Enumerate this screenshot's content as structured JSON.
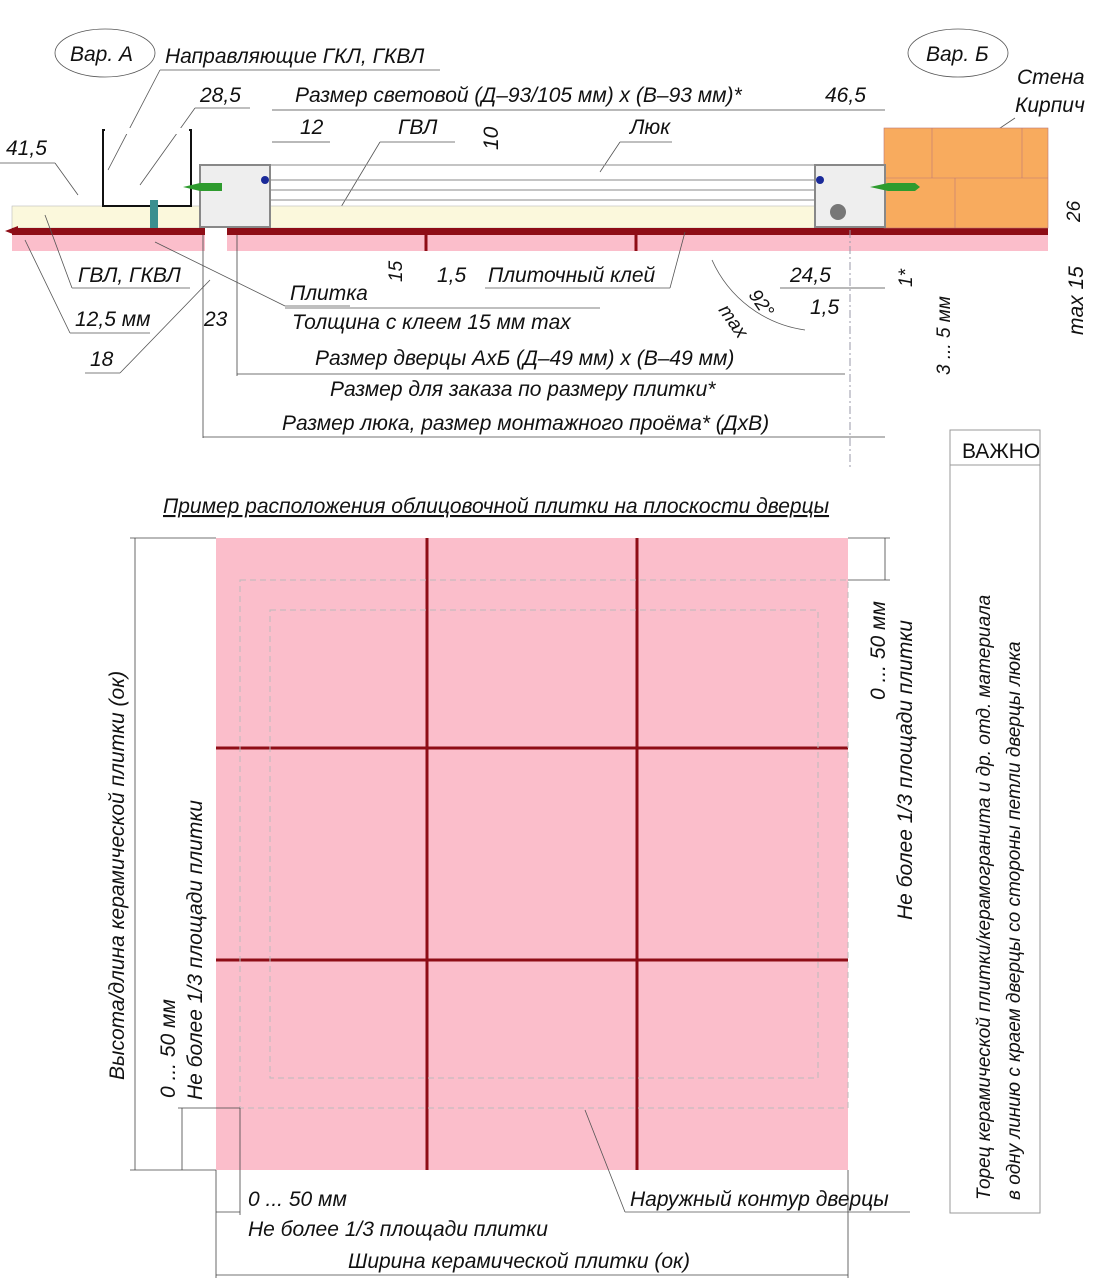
{
  "colors": {
    "tile": "#fbbecb",
    "adhesive": "#8e0d16",
    "board": "#fbf8dc",
    "brick": "#f8ab5e",
    "screw": "#2e9b2e",
    "tile_joint": "#8e0d16"
  },
  "section": {
    "var_a": "Вар. А",
    "var_b": "Вар. Б",
    "guides": "Направляющие ГКЛ, ГКВЛ",
    "d28_5": "28,5",
    "light_size": "Размер световой (Д–93/105 мм) х (В–93 мм)*",
    "d46_5": "46,5",
    "wall": "Стена",
    "brick": "Кирпич",
    "d41_5": "41,5",
    "d12": "12",
    "gvl": "ГВЛ",
    "d10": "10",
    "hatch": "Люк",
    "d26": "26",
    "gvl_gkvl": "ГВЛ, ГКВЛ",
    "tile": "Плитка",
    "d15": "15",
    "d1_5": "1,5",
    "adhesive": "Плиточный клей",
    "d24_5": "24,5",
    "d1star": "1*",
    "max15": "max 15",
    "d12_5": "12,5 мм",
    "d23": "23",
    "thickness": "Толщина с клеем 15 мм max",
    "angle": "92°",
    "max": "max",
    "d1_5b": "1,5",
    "gap": "3 ... 5 мм",
    "d18": "18",
    "door_size": "Размер дверцы АхБ (Д–49 мм) х (В–49 мм)",
    "order_size": "Размер для заказа по размеру плитки*",
    "hatch_size": "Размер люка, размер монтажного проёма* (ДхВ)"
  },
  "important": {
    "title": "ВАЖНО",
    "line1": "Торец керамической плитки/керамогранита и др. отд. материала",
    "line2": "в одну линию с краем дверцы со стороны петли дверцы люка"
  },
  "plan": {
    "title": "Пример расположения облицовочной плитки на плоскости дверцы",
    "right_range": "0 ... 50 мм",
    "right_note": "Не более 1/3 площади плитки",
    "height_label": "Высота/длина керамической плитки (ок)",
    "left_range": "0 ... 50 мм",
    "left_note": "Не более 1/3 площади плитки",
    "bottom_range": "0 ... 50 мм",
    "bottom_note": "Не более 1/3 площади плитки",
    "width_label": "Ширина керамической плитки (ок)",
    "outer_contour": "Наружный контур дверцы"
  }
}
